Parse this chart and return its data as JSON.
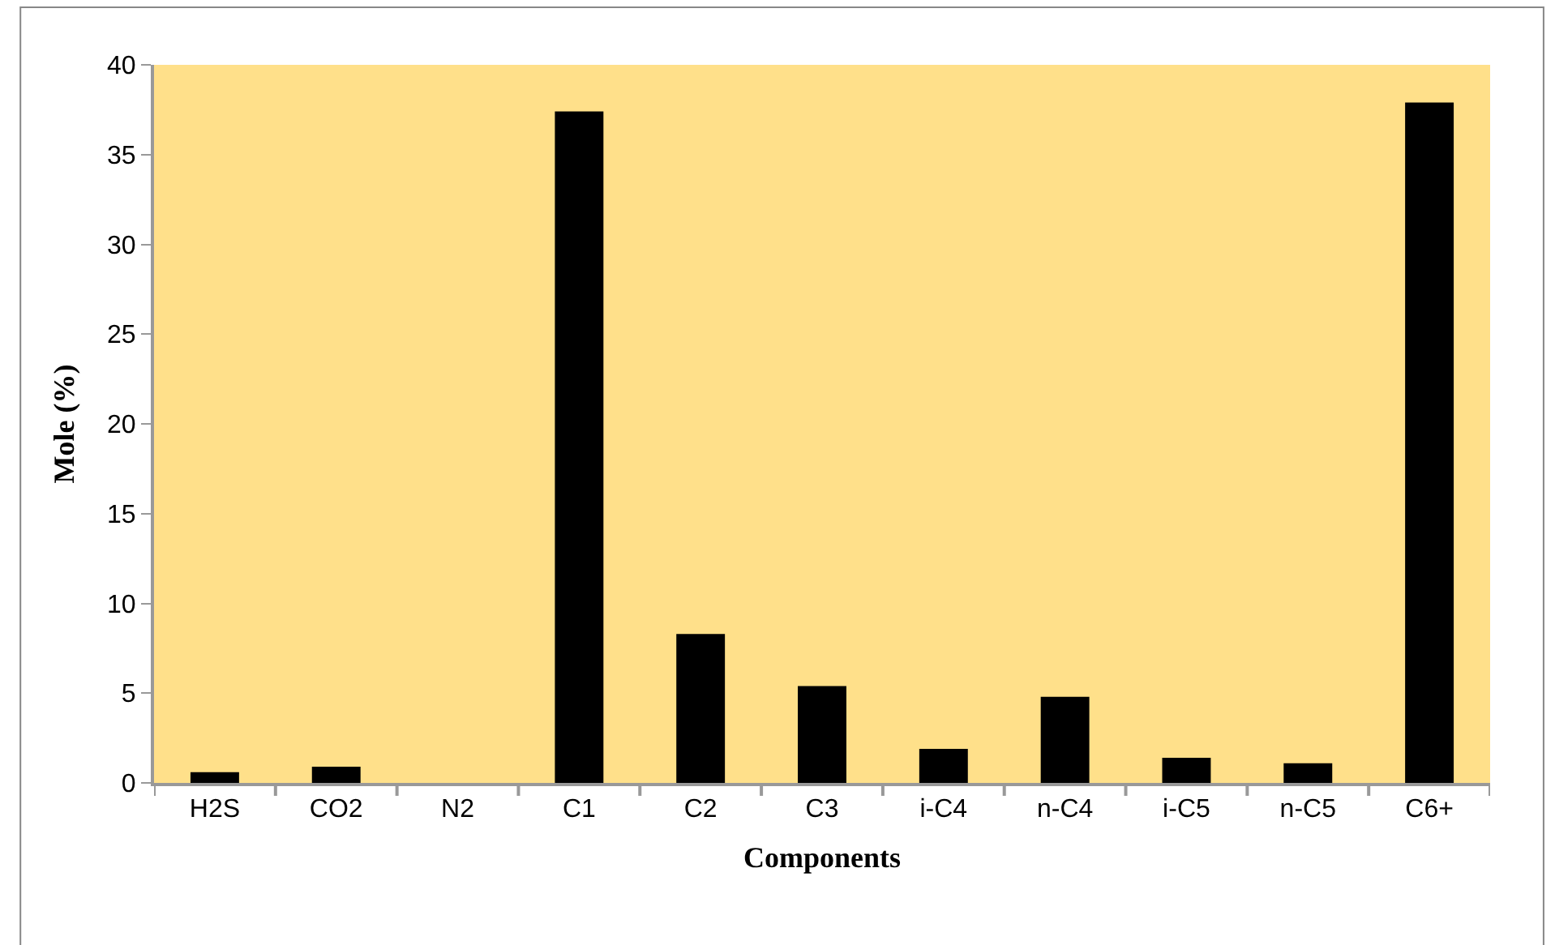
{
  "chart_data": {
    "type": "bar",
    "xlabel": "Components",
    "ylabel": "Mole (%)",
    "categories": [
      "H2S",
      "CO2",
      "N2",
      "C1",
      "C2",
      "C3",
      "i-C4",
      "n-C4",
      "i-C5",
      "n-C5",
      "C6+"
    ],
    "values": [
      0.6,
      0.9,
      0,
      37.4,
      8.3,
      5.4,
      1.9,
      4.8,
      1.4,
      1.1,
      37.9
    ],
    "color": "#000000",
    "ylim": [
      0,
      40
    ],
    "yticks": [
      0,
      5,
      10,
      15,
      20,
      25,
      30,
      35,
      40
    ],
    "grid": false
  }
}
